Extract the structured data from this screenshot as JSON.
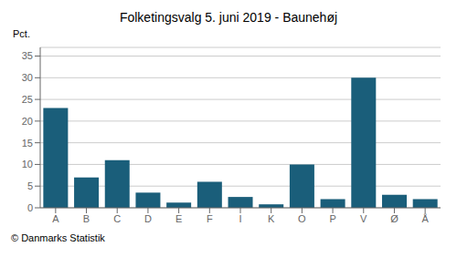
{
  "chart_data": {
    "type": "bar",
    "title": "Folketingsvalg 5. juni 2019 - Baunehøj",
    "categories": [
      "A",
      "B",
      "C",
      "D",
      "E",
      "F",
      "I",
      "K",
      "O",
      "P",
      "V",
      "Ø",
      "Å"
    ],
    "values": [
      23,
      7,
      11,
      3.5,
      1.2,
      6,
      2.5,
      0.8,
      10,
      2,
      30,
      3,
      2
    ],
    "color": "#1a5e7a",
    "ylabel": "Pct.",
    "ylim": [
      0,
      37
    ],
    "yticks": [
      0,
      5,
      10,
      15,
      20,
      25,
      30,
      35
    ],
    "grid": true,
    "annotations": [
      "© Danmarks Statistik"
    ]
  }
}
